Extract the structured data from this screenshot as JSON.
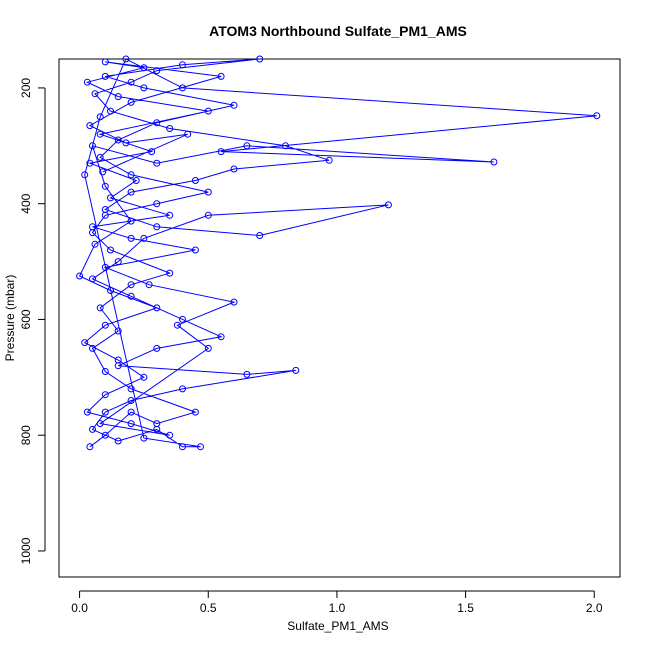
{
  "chart_data": {
    "type": "scatter",
    "title": "ATOM3 Northbound Sulfate_PM1_AMS",
    "xlabel": "Sulfate_PM1_AMS",
    "ylabel": "Pressure (mbar)",
    "xlim": [
      -0.08,
      2.1
    ],
    "ylim": [
      1045,
      150
    ],
    "y_reversed": true,
    "x_ticks": [
      "0.0",
      "0.5",
      "1.0",
      "1.5",
      "2.0"
    ],
    "x_tick_values": [
      0,
      0.5,
      1.0,
      1.5,
      2.0
    ],
    "y_ticks": [
      "200",
      "400",
      "600",
      "800",
      "1000"
    ],
    "y_tick_values": [
      200,
      400,
      600,
      800,
      1000
    ],
    "grid": false,
    "series": [
      {
        "color": "#0000ff",
        "marker": "open-circle",
        "connected": true,
        "points": [
          [
            0.04,
            820
          ],
          [
            0.1,
            800
          ],
          [
            0.2,
            760
          ],
          [
            0.3,
            780
          ],
          [
            0.45,
            760
          ],
          [
            0.2,
            720
          ],
          [
            0.1,
            690
          ],
          [
            0.05,
            650
          ],
          [
            0.15,
            620
          ],
          [
            0.08,
            580
          ],
          [
            0.2,
            540
          ],
          [
            0.35,
            520
          ],
          [
            0.12,
            480
          ],
          [
            0.05,
            450
          ],
          [
            0.1,
            420
          ],
          [
            0.3,
            400
          ],
          [
            0.5,
            380
          ],
          [
            0.2,
            350
          ],
          [
            0.08,
            320
          ],
          [
            0.15,
            290
          ],
          [
            0.3,
            260
          ],
          [
            0.6,
            230
          ],
          [
            0.25,
            200
          ],
          [
            0.1,
            180
          ],
          [
            0.4,
            160
          ],
          [
            0.7,
            150
          ],
          [
            0.3,
            170
          ],
          [
            0.2,
            190
          ],
          [
            0.06,
            210
          ],
          [
            0.12,
            240
          ],
          [
            0.35,
            270
          ],
          [
            0.8,
            300
          ],
          [
            0.97,
            325
          ],
          [
            0.6,
            340
          ],
          [
            0.45,
            360
          ],
          [
            0.2,
            380
          ],
          [
            0.1,
            410
          ],
          [
            0.3,
            440
          ],
          [
            0.7,
            455
          ],
          [
            1.2,
            402
          ],
          [
            0.5,
            420
          ],
          [
            0.25,
            460
          ],
          [
            0.15,
            500
          ],
          [
            0.05,
            530
          ],
          [
            0.2,
            560
          ],
          [
            0.4,
            600
          ],
          [
            0.55,
            630
          ],
          [
            0.3,
            650
          ],
          [
            0.15,
            680
          ],
          [
            0.65,
            695
          ],
          [
            0.84,
            688
          ],
          [
            0.4,
            720
          ],
          [
            0.2,
            740
          ],
          [
            0.1,
            760
          ],
          [
            0.05,
            790
          ],
          [
            0.15,
            810
          ],
          [
            0.3,
            790
          ],
          [
            0.4,
            820
          ],
          [
            0.47,
            820
          ],
          [
            0.25,
            805
          ],
          [
            0.02,
            350
          ],
          [
            0.08,
            250
          ],
          [
            0.18,
            150
          ],
          [
            0.4,
            200
          ],
          [
            2.01,
            248
          ],
          [
            0.55,
            310
          ],
          [
            1.61,
            328
          ],
          [
            0.65,
            300
          ],
          [
            0.3,
            330
          ],
          [
            0.05,
            300
          ],
          [
            0.1,
            370
          ],
          [
            0.2,
            430
          ],
          [
            0.06,
            470
          ],
          [
            0.0,
            525
          ],
          [
            0.12,
            550
          ],
          [
            0.3,
            580
          ],
          [
            0.1,
            610
          ],
          [
            0.02,
            640
          ],
          [
            0.15,
            670
          ],
          [
            0.25,
            700
          ],
          [
            0.1,
            730
          ],
          [
            0.03,
            760
          ],
          [
            0.2,
            780
          ],
          [
            0.35,
            800
          ],
          [
            0.08,
            780
          ],
          [
            0.5,
            650
          ],
          [
            0.38,
            610
          ],
          [
            0.6,
            570
          ],
          [
            0.27,
            540
          ],
          [
            0.1,
            510
          ],
          [
            0.45,
            480
          ],
          [
            0.2,
            460
          ],
          [
            0.05,
            440
          ],
          [
            0.35,
            420
          ],
          [
            0.12,
            390
          ],
          [
            0.22,
            360
          ],
          [
            0.04,
            330
          ],
          [
            0.28,
            310
          ],
          [
            0.08,
            280
          ],
          [
            0.5,
            240
          ],
          [
            0.15,
            215
          ],
          [
            0.03,
            190
          ],
          [
            0.25,
            165
          ],
          [
            0.1,
            155
          ],
          [
            0.55,
            180
          ],
          [
            0.2,
            225
          ],
          [
            0.04,
            265
          ],
          [
            0.18,
            295
          ],
          [
            0.42,
            280
          ],
          [
            0.09,
            345
          ]
        ]
      }
    ]
  }
}
